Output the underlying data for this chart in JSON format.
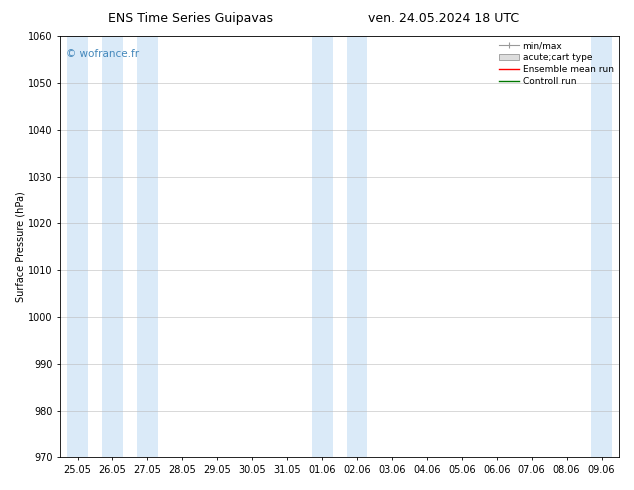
{
  "title_left": "ENS Time Series Guipavas",
  "title_right": "ven. 24.05.2024 18 UTC",
  "ylabel": "Surface Pressure (hPa)",
  "ylim": [
    970,
    1060
  ],
  "yticks": [
    970,
    980,
    990,
    1000,
    1010,
    1020,
    1030,
    1040,
    1050,
    1060
  ],
  "x_labels": [
    "25.05",
    "26.05",
    "27.05",
    "28.05",
    "29.05",
    "30.05",
    "31.05",
    "01.06",
    "02.06",
    "03.06",
    "04.06",
    "05.06",
    "06.06",
    "07.06",
    "08.06",
    "09.06"
  ],
  "shaded_cols_light": [
    0,
    1,
    2,
    7,
    8,
    15
  ],
  "background_color": "#ffffff",
  "band_color": "#daeaf8",
  "watermark_text": "© wofrance.fr",
  "watermark_color": "#4488bb",
  "legend_items": [
    {
      "label": "min/max",
      "color": "#aaaaaa",
      "type": "errorbar"
    },
    {
      "label": "acute;cart type",
      "color": "#aaaaaa",
      "type": "fill"
    },
    {
      "label": "Ensemble mean run",
      "color": "#ff0000",
      "type": "line"
    },
    {
      "label": "Controll run",
      "color": "#007700",
      "type": "line"
    }
  ],
  "title_fontsize": 9,
  "axis_fontsize": 7,
  "tick_fontsize": 7,
  "legend_fontsize": 6.5,
  "watermark_fontsize": 7.5
}
